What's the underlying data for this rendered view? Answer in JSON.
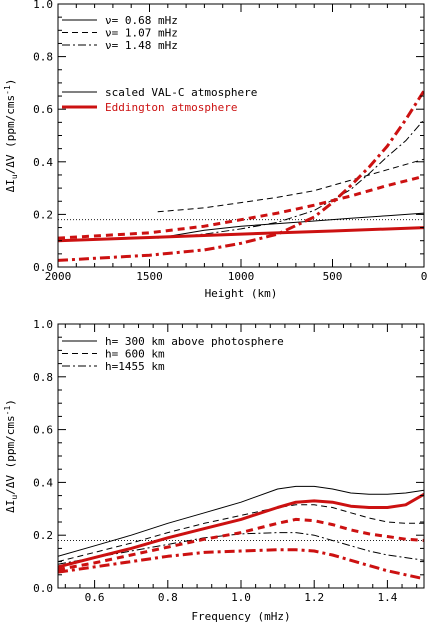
{
  "colors": {
    "black": "#000000",
    "red": "#cc1111"
  },
  "chart_data": [
    {
      "type": "line",
      "xlabel": "Height (km)",
      "ylabel_main": "ΔI",
      "ylabel_sub": "u",
      "ylabel_rest": "/ΔV (ppm/cms",
      "ylabel_sup": "-1",
      "ylabel_end": ")",
      "xlim": [
        2000,
        0
      ],
      "ylim": [
        0,
        1.0
      ],
      "xticks": [
        2000,
        1500,
        1000,
        500,
        0
      ],
      "xtick_labels": [
        "2000",
        "1500",
        "1000",
        "500",
        "0"
      ],
      "yticks": [
        0.0,
        0.2,
        0.4,
        0.6,
        0.8,
        1.0
      ],
      "ytick_labels": [
        "0.0",
        "0.2",
        "0.4",
        "0.6",
        "0.8",
        "1.0"
      ],
      "reference_y": 0.18,
      "legend_linestyle": [
        {
          "label": "ν= 0.68 mHz",
          "dash": "solid"
        },
        {
          "label": "ν= 1.07 mHz",
          "dash": "dashed"
        },
        {
          "label": "ν= 1.48 mHz",
          "dash": "dashdot"
        }
      ],
      "legend_model": [
        {
          "label": "scaled VAL-C atmosphere",
          "color": "#000000",
          "width": 1
        },
        {
          "label": "Eddington atmosphere",
          "color": "#cc1111",
          "width": 3
        }
      ],
      "series": [
        {
          "model": "VAL-C",
          "dash": "solid",
          "color": "#000000",
          "width": 1,
          "x": [
            1455,
            1200,
            1000,
            800,
            600,
            400,
            200,
            0
          ],
          "y": [
            0.11,
            0.14,
            0.155,
            0.165,
            0.175,
            0.185,
            0.195,
            0.205
          ]
        },
        {
          "model": "VAL-C",
          "dash": "dashed",
          "color": "#000000",
          "width": 1,
          "x": [
            1455,
            1200,
            1000,
            800,
            600,
            400,
            200,
            0
          ],
          "y": [
            0.21,
            0.225,
            0.245,
            0.265,
            0.29,
            0.33,
            0.37,
            0.41
          ]
        },
        {
          "model": "VAL-C",
          "dash": "dashdot",
          "color": "#000000",
          "width": 1,
          "x": [
            1455,
            1200,
            1000,
            800,
            600,
            400,
            300,
            200,
            100,
            0
          ],
          "y": [
            0.11,
            0.125,
            0.145,
            0.17,
            0.215,
            0.295,
            0.355,
            0.42,
            0.48,
            0.56
          ]
        },
        {
          "model": "Eddington",
          "dash": "solid",
          "color": "#cc1111",
          "width": 3,
          "x": [
            2000,
            1500,
            1000,
            500,
            0
          ],
          "y": [
            0.1,
            0.112,
            0.125,
            0.137,
            0.15
          ]
        },
        {
          "model": "Eddington",
          "dash": "dashed",
          "color": "#cc1111",
          "width": 3,
          "x": [
            2000,
            1500,
            1200,
            1000,
            800,
            600,
            400,
            200,
            0
          ],
          "y": [
            0.11,
            0.13,
            0.155,
            0.18,
            0.205,
            0.235,
            0.27,
            0.31,
            0.345
          ]
        },
        {
          "model": "Eddington",
          "dash": "dashdot",
          "color": "#cc1111",
          "width": 3,
          "x": [
            2000,
            1500,
            1200,
            1000,
            800,
            600,
            500,
            400,
            300,
            200,
            100,
            0
          ],
          "y": [
            0.025,
            0.045,
            0.065,
            0.09,
            0.125,
            0.19,
            0.245,
            0.31,
            0.38,
            0.46,
            0.56,
            0.67
          ]
        }
      ]
    },
    {
      "type": "line",
      "xlabel": "Frequency (mHz)",
      "ylabel_main": "ΔI",
      "ylabel_sub": "u",
      "ylabel_rest": "/ΔV (ppm/cms",
      "ylabel_sup": "-1",
      "ylabel_end": ")",
      "xlim": [
        0.5,
        1.5
      ],
      "ylim": [
        0,
        1.0
      ],
      "xticks": [
        0.6,
        0.8,
        1.0,
        1.2,
        1.4
      ],
      "xtick_labels": [
        "0.6",
        "0.8",
        "1.0",
        "1.2",
        "1.4"
      ],
      "yticks": [
        0.0,
        0.2,
        0.4,
        0.6,
        0.8,
        1.0
      ],
      "ytick_labels": [
        "0.0",
        "0.2",
        "0.4",
        "0.6",
        "0.8",
        "1.0"
      ],
      "reference_y": 0.18,
      "legend_linestyle": [
        {
          "label": "h= 300 km above photosphere",
          "dash": "solid"
        },
        {
          "label": "h= 600 km",
          "dash": "dashed"
        },
        {
          "label": "h=1455 km",
          "dash": "dashdot"
        }
      ],
      "series": [
        {
          "model": "VAL-C",
          "dash": "solid",
          "color": "#000000",
          "width": 1,
          "x": [
            0.5,
            0.6,
            0.7,
            0.8,
            0.9,
            1.0,
            1.1,
            1.15,
            1.2,
            1.25,
            1.3,
            1.35,
            1.4,
            1.45,
            1.5
          ],
          "y": [
            0.12,
            0.16,
            0.2,
            0.245,
            0.285,
            0.325,
            0.375,
            0.385,
            0.385,
            0.375,
            0.36,
            0.355,
            0.355,
            0.36,
            0.37
          ]
        },
        {
          "model": "VAL-C",
          "dash": "dashed",
          "color": "#000000",
          "width": 1,
          "x": [
            0.5,
            0.6,
            0.7,
            0.8,
            0.9,
            1.0,
            1.1,
            1.15,
            1.2,
            1.25,
            1.3,
            1.35,
            1.4,
            1.45,
            1.5
          ],
          "y": [
            0.1,
            0.135,
            0.17,
            0.21,
            0.245,
            0.275,
            0.305,
            0.315,
            0.315,
            0.305,
            0.285,
            0.265,
            0.25,
            0.245,
            0.245
          ]
        },
        {
          "model": "VAL-C",
          "dash": "dashdot",
          "color": "#000000",
          "width": 1,
          "x": [
            0.5,
            0.6,
            0.7,
            0.8,
            0.9,
            1.0,
            1.1,
            1.15,
            1.2,
            1.25,
            1.3,
            1.35,
            1.4,
            1.45,
            1.5
          ],
          "y": [
            0.09,
            0.115,
            0.14,
            0.165,
            0.19,
            0.205,
            0.21,
            0.21,
            0.2,
            0.18,
            0.16,
            0.14,
            0.125,
            0.115,
            0.105
          ]
        },
        {
          "model": "Eddington",
          "dash": "solid",
          "color": "#cc1111",
          "width": 3,
          "x": [
            0.5,
            0.6,
            0.7,
            0.8,
            0.9,
            1.0,
            1.1,
            1.15,
            1.2,
            1.25,
            1.3,
            1.35,
            1.4,
            1.45,
            1.5
          ],
          "y": [
            0.08,
            0.115,
            0.15,
            0.19,
            0.225,
            0.26,
            0.305,
            0.325,
            0.33,
            0.325,
            0.31,
            0.305,
            0.305,
            0.315,
            0.355
          ]
        },
        {
          "model": "Eddington",
          "dash": "dashed",
          "color": "#cc1111",
          "width": 3,
          "x": [
            0.5,
            0.6,
            0.7,
            0.8,
            0.9,
            1.0,
            1.1,
            1.15,
            1.2,
            1.25,
            1.3,
            1.35,
            1.4,
            1.45,
            1.5
          ],
          "y": [
            0.07,
            0.095,
            0.125,
            0.155,
            0.185,
            0.21,
            0.245,
            0.26,
            0.255,
            0.24,
            0.22,
            0.205,
            0.195,
            0.185,
            0.18
          ]
        },
        {
          "model": "Eddington",
          "dash": "dashdot",
          "color": "#cc1111",
          "width": 3,
          "x": [
            0.5,
            0.6,
            0.7,
            0.8,
            0.9,
            1.0,
            1.1,
            1.15,
            1.2,
            1.25,
            1.3,
            1.35,
            1.4,
            1.45,
            1.5
          ],
          "y": [
            0.06,
            0.08,
            0.1,
            0.12,
            0.135,
            0.14,
            0.145,
            0.145,
            0.14,
            0.125,
            0.105,
            0.085,
            0.065,
            0.05,
            0.035
          ]
        }
      ]
    }
  ]
}
